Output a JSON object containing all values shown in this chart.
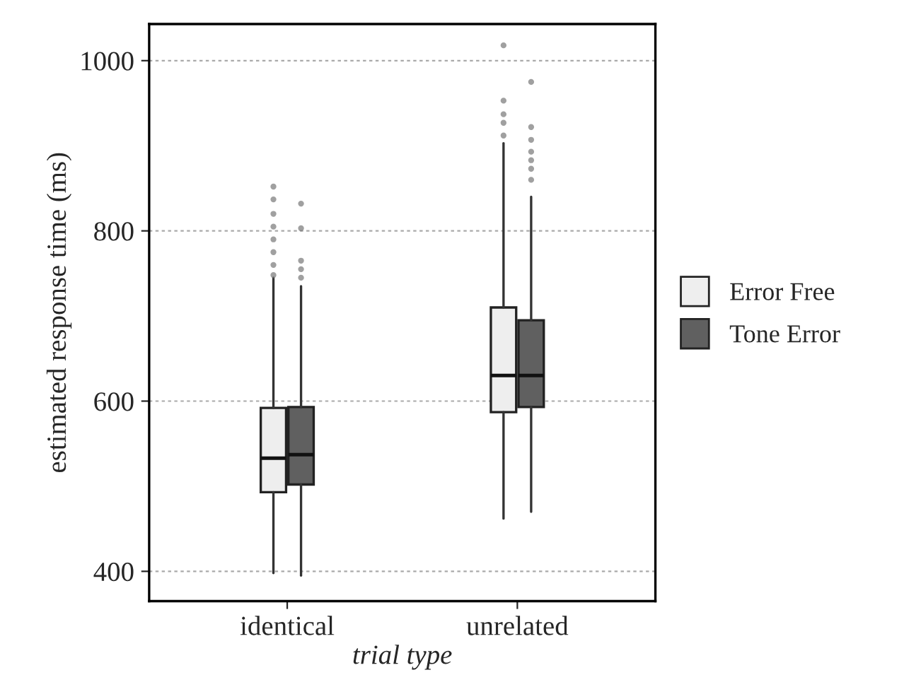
{
  "chart_data": {
    "type": "box",
    "xlabel": "trial type",
    "ylabel": "estimated response time (ms)",
    "categories": [
      "identical",
      "unrelated"
    ],
    "ylim": [
      365,
      1043
    ],
    "yticks": [
      400,
      600,
      800,
      1000
    ],
    "grid": "y",
    "legend": "right",
    "series": [
      {
        "name": "Error Free",
        "color": "#eeeeee",
        "boxes": [
          {
            "low": 398,
            "q1": 493,
            "median": 533,
            "q3": 592,
            "high": 745,
            "outliers": [
              852,
              837,
              820,
              805,
              790,
              775,
              760,
              748
            ]
          },
          {
            "low": 462,
            "q1": 587,
            "median": 630,
            "q3": 710,
            "high": 903,
            "outliers": [
              1018,
              953,
              937,
              927,
              912
            ]
          }
        ]
      },
      {
        "name": "Tone Error",
        "color": "#606060",
        "boxes": [
          {
            "low": 395,
            "q1": 502,
            "median": 537,
            "q3": 593,
            "high": 735,
            "outliers": [
              832,
              803,
              765,
              755,
              745
            ]
          },
          {
            "low": 470,
            "q1": 593,
            "median": 630,
            "q3": 695,
            "high": 840,
            "outliers": [
              975,
              922,
              907,
              893,
              883,
              873,
              860
            ]
          }
        ]
      }
    ]
  }
}
